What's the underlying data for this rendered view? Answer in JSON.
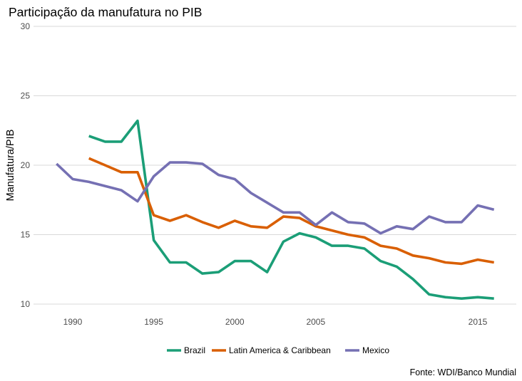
{
  "chart_data": {
    "type": "line",
    "title": "Participação da manufatura no PIB",
    "xlabel": "",
    "ylabel": "Manufatura/PIB",
    "caption": "Fonte: WDI/Banco Mundial",
    "xlim": [
      1987.8,
      2017.5
    ],
    "ylim": [
      10,
      30
    ],
    "xticks": [
      1990,
      1995,
      2000,
      2005,
      2015
    ],
    "xtick_labels": [
      "1990",
      "1995",
      "2000",
      "2005",
      "2015"
    ],
    "yticks": [
      10,
      15,
      20,
      25,
      30
    ],
    "ytick_labels": [
      "10",
      "15",
      "20",
      "25",
      "30"
    ],
    "grid": "horizontal",
    "legend_position": "bottom",
    "series": [
      {
        "name": "Brazil",
        "color": "#1b9e77",
        "x": [
          1991,
          1992,
          1993,
          1994,
          1995,
          1996,
          1997,
          1998,
          1999,
          2000,
          2001,
          2002,
          2003,
          2004,
          2005,
          2006,
          2007,
          2008,
          2009,
          2010,
          2011,
          2012,
          2013,
          2014,
          2015,
          2016
        ],
        "values": [
          22.1,
          21.7,
          21.7,
          23.2,
          14.6,
          13.0,
          13.0,
          12.2,
          12.3,
          13.1,
          13.1,
          12.3,
          14.5,
          15.1,
          14.8,
          14.2,
          14.2,
          14.0,
          13.1,
          12.7,
          11.8,
          10.7,
          10.5,
          10.4,
          10.5,
          10.4
        ]
      },
      {
        "name": "Latin America & Caribbean",
        "color": "#d95f02",
        "x": [
          1991,
          1992,
          1993,
          1994,
          1995,
          1996,
          1997,
          1998,
          1999,
          2000,
          2001,
          2002,
          2003,
          2004,
          2005,
          2006,
          2007,
          2008,
          2009,
          2010,
          2011,
          2012,
          2013,
          2014,
          2015,
          2016
        ],
        "values": [
          20.5,
          20.0,
          19.5,
          19.5,
          16.4,
          16.0,
          16.4,
          15.9,
          15.5,
          16.0,
          15.6,
          15.5,
          16.3,
          16.2,
          15.6,
          15.3,
          15.0,
          14.8,
          14.2,
          14.0,
          13.5,
          13.3,
          13.0,
          12.9,
          13.2,
          13.0
        ]
      },
      {
        "name": "Mexico",
        "color": "#7570b3",
        "x": [
          1989,
          1990,
          1991,
          1992,
          1993,
          1994,
          1995,
          1996,
          1997,
          1998,
          1999,
          2000,
          2001,
          2002,
          2003,
          2004,
          2005,
          2006,
          2007,
          2008,
          2009,
          2010,
          2011,
          2012,
          2013,
          2014,
          2015,
          2016
        ],
        "values": [
          20.1,
          19.0,
          18.8,
          18.5,
          18.2,
          17.4,
          19.2,
          20.2,
          20.2,
          20.1,
          19.3,
          19.0,
          18.0,
          17.3,
          16.6,
          16.6,
          15.7,
          16.6,
          15.9,
          15.8,
          15.1,
          15.6,
          15.4,
          16.3,
          15.9,
          15.9,
          17.1,
          16.8
        ]
      }
    ]
  }
}
